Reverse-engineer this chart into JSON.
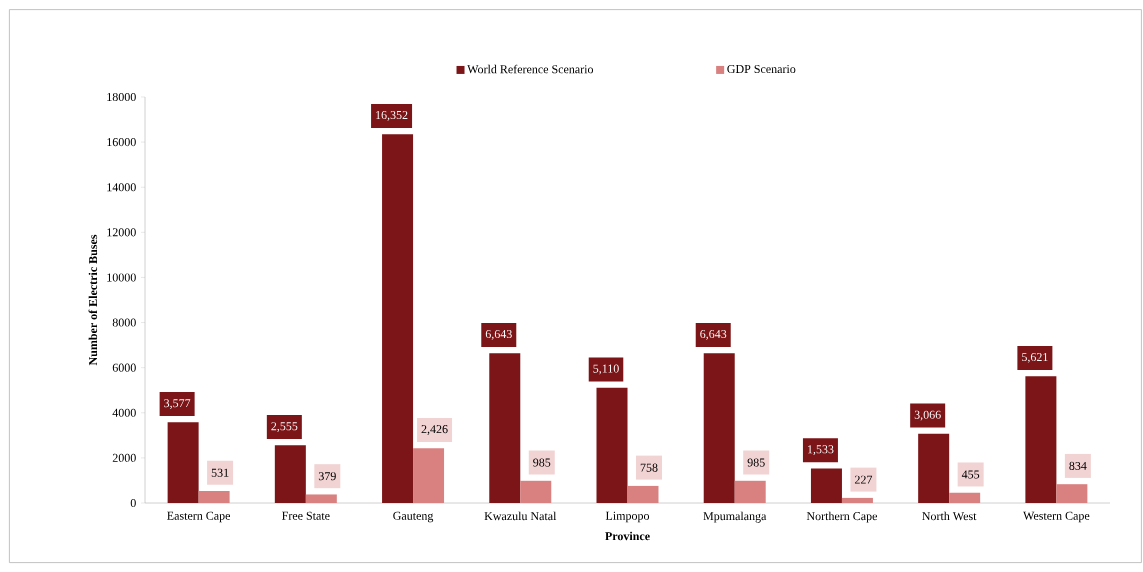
{
  "chart_data": {
    "type": "bar",
    "xlabel": "Province",
    "ylabel": "Number of Electric Buses",
    "categories": [
      "Eastern Cape",
      "Free State",
      "Gauteng",
      "Kwazulu Natal",
      "Limpopo",
      "Mpumalanga",
      "Northern Cape",
      "North West",
      "Western Cape"
    ],
    "series": [
      {
        "name": "World Reference Scenario",
        "color": "#7b1517",
        "values": [
          3577,
          2555,
          16352,
          6643,
          5110,
          6643,
          1533,
          3066,
          5621
        ],
        "value_labels": [
          "3,577",
          "2,555",
          "16,352",
          "6,643",
          "5,110",
          "6,643",
          "1,533",
          "3,066",
          "5,621"
        ]
      },
      {
        "name": "GDP Scenario",
        "color": "#d98080",
        "values": [
          531,
          379,
          2426,
          985,
          758,
          985,
          227,
          455,
          834
        ],
        "value_labels": [
          "531",
          "379",
          "2,426",
          "985",
          "758",
          "985",
          "227",
          "455",
          "834"
        ]
      }
    ],
    "ylim": [
      0,
      18000
    ],
    "yticks": [
      0,
      2000,
      4000,
      6000,
      8000,
      10000,
      12000,
      14000,
      16000,
      18000
    ],
    "legend": "top"
  }
}
